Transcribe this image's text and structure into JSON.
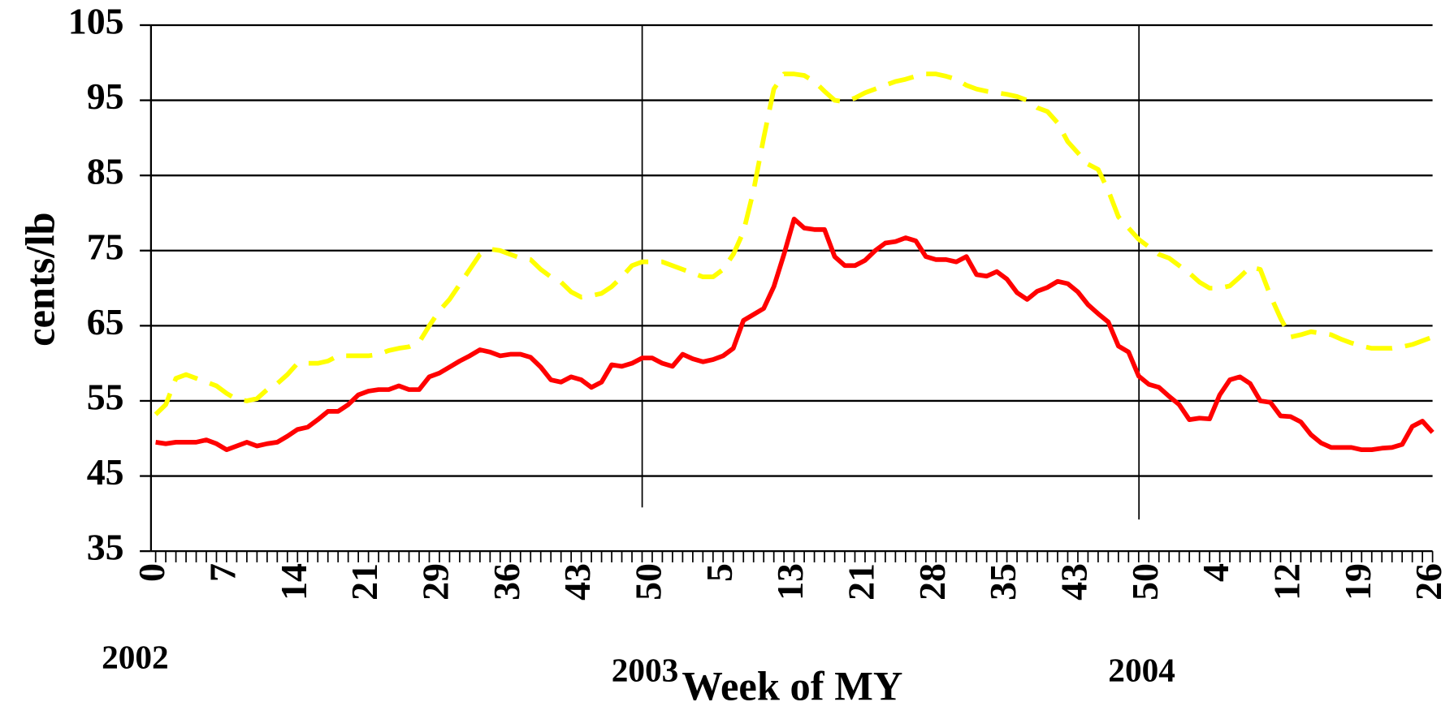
{
  "chart_data": {
    "type": "line",
    "y_label": "cents/lb",
    "x_label": "Week of MY",
    "annotations": [
      "2002",
      "2003",
      "2004"
    ],
    "categories": [
      "0",
      null,
      null,
      null,
      null,
      null,
      null,
      "7",
      null,
      null,
      null,
      null,
      null,
      null,
      "14",
      null,
      null,
      null,
      null,
      null,
      null,
      "21",
      null,
      null,
      null,
      null,
      null,
      null,
      "29",
      null,
      null,
      null,
      null,
      null,
      null,
      "36",
      null,
      null,
      null,
      null,
      null,
      null,
      "43",
      null,
      null,
      null,
      null,
      null,
      null,
      "50",
      null,
      null,
      null,
      null,
      null,
      null,
      "5",
      null,
      null,
      null,
      null,
      null,
      null,
      "13",
      null,
      null,
      null,
      null,
      null,
      null,
      "21",
      null,
      null,
      null,
      null,
      null,
      null,
      "28",
      null,
      null,
      null,
      null,
      null,
      null,
      "35",
      null,
      null,
      null,
      null,
      null,
      null,
      "43",
      null,
      null,
      null,
      null,
      null,
      null,
      "50",
      null,
      null,
      null,
      null,
      null,
      null,
      "4",
      null,
      null,
      null,
      null,
      null,
      null,
      "12",
      null,
      null,
      null,
      null,
      null,
      null,
      "19",
      null,
      null,
      null,
      null,
      null,
      null,
      "26"
    ],
    "series": [
      {
        "color": "#ff0000",
        "dash": false,
        "values": [
          49.5,
          49.3,
          49.5,
          49.5,
          49.5,
          49.8,
          49.3,
          48.5,
          49,
          49.5,
          49,
          49.3,
          49.5,
          50.3,
          51.2,
          51.5,
          52.5,
          53.6,
          53.6,
          54.5,
          55.8,
          56.3,
          56.5,
          56.5,
          57,
          56.5,
          56.5,
          58.2,
          58.7,
          59.5,
          60.3,
          61,
          61.8,
          61.5,
          61,
          61.2,
          61.2,
          60.8,
          59.5,
          57.8,
          57.5,
          58.2,
          57.8,
          56.8,
          57.5,
          59.8,
          59.6,
          60,
          60.7,
          60.7,
          60,
          59.6,
          61.2,
          60.6,
          60.2,
          60.5,
          61,
          62,
          65.7,
          66.5,
          67.3,
          70.2,
          74.5,
          79.2,
          78,
          77.8,
          77.8,
          74.2,
          73,
          73,
          73.7,
          75,
          76,
          76.2,
          76.7,
          76.3,
          74.2,
          73.8,
          73.8,
          73.5,
          74.2,
          71.8,
          71.6,
          72.2,
          71.2,
          69.4,
          68.5,
          69.6,
          70.1,
          70.9,
          70.6,
          69.5,
          67.8,
          66.6,
          65.5,
          62.3,
          61.5,
          58.3,
          57.2,
          56.8,
          55.6,
          54.5,
          52.5,
          52.7,
          52.6,
          55.8,
          57.8,
          58.2,
          57.3,
          55,
          54.8,
          53,
          52.9,
          52.2,
          50.5,
          49.4,
          48.8,
          48.8,
          48.8,
          48.5,
          48.5,
          48.7,
          48.8,
          49.2,
          51.6,
          52.3,
          50.8
        ]
      },
      {
        "color": "#ffff00",
        "dash": true,
        "values": [
          53.2,
          54.5,
          58,
          58.5,
          58,
          57.5,
          57,
          56,
          55.2,
          55,
          55.3,
          56.5,
          57.3,
          58.5,
          60,
          60,
          60,
          60.3,
          61,
          61,
          61,
          61,
          61.2,
          61.7,
          62,
          62.2,
          62.8,
          65,
          67,
          68.5,
          70.5,
          72.5,
          74.5,
          75.2,
          75,
          74.5,
          74,
          73.8,
          72.5,
          71.5,
          70.8,
          69.5,
          68.8,
          69,
          69.3,
          70.2,
          71.5,
          73,
          73.5,
          73.5,
          73.5,
          73,
          72.5,
          72,
          71.5,
          71.5,
          72.5,
          74.5,
          77.5,
          83,
          90,
          96.5,
          98.5,
          98.5,
          98.3,
          97.5,
          96.2,
          95,
          94.8,
          95.3,
          96,
          96.5,
          97,
          97.5,
          97.8,
          98.2,
          98.5,
          98.5,
          98.2,
          97.8,
          97,
          96.5,
          96.2,
          96,
          95.8,
          95.5,
          95,
          94,
          93.5,
          92,
          89.5,
          88,
          86.5,
          85.8,
          83,
          79.5,
          78,
          76.5,
          75.5,
          74.5,
          74,
          73,
          72,
          70.8,
          70,
          70,
          70.3,
          71.5,
          72.8,
          72.5,
          69,
          66,
          63.5,
          63.8,
          64.2,
          64,
          63.8,
          63.2,
          62.7,
          62.3,
          62,
          62,
          62,
          62.2,
          62.5,
          63,
          63.5
        ]
      }
    ],
    "ylim": [
      35,
      105
    ],
    "yticks": [
      35,
      45,
      55,
      65,
      75,
      85,
      95,
      105
    ],
    "grid": true
  }
}
